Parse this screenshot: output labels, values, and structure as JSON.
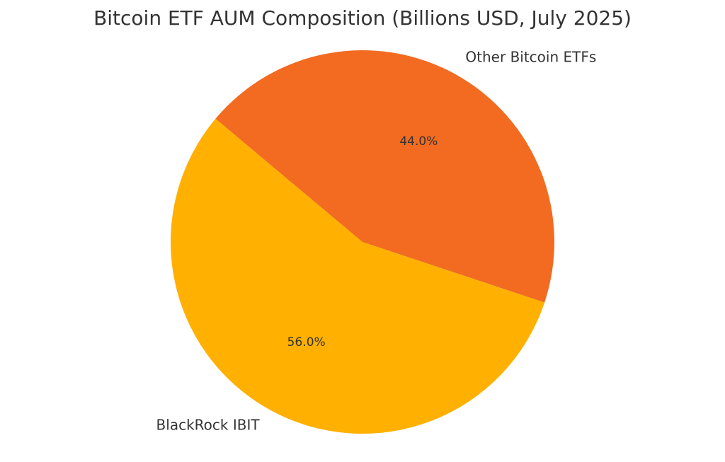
{
  "chart_data": {
    "type": "pie",
    "title": "Bitcoin ETF AUM Composition (Billions USD, July 2025)",
    "slices": [
      {
        "label": "BlackRock IBIT",
        "value": 56.0,
        "percent_label": "56.0%",
        "color": "#FFB000"
      },
      {
        "label": "Other Bitcoin ETFs",
        "value": 44.0,
        "percent_label": "44.0%",
        "color": "#F26B21"
      }
    ],
    "start_angle_deg": 140,
    "direction": "counterclockwise"
  }
}
